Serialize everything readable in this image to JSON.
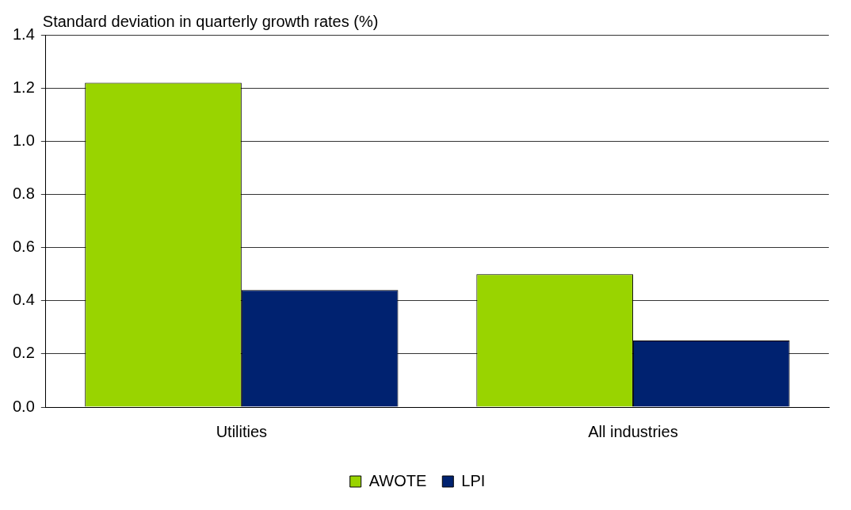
{
  "chart_data": {
    "type": "bar",
    "ylabel": "Standard deviation in quarterly growth rates (%)",
    "categories": [
      "Utilities",
      "All industries"
    ],
    "series": [
      {
        "name": "AWOTE",
        "color": "#99d400",
        "values": [
          1.22,
          0.5
        ]
      },
      {
        "name": "LPI",
        "color": "#002270",
        "values": [
          0.44,
          0.25
        ]
      }
    ],
    "ylim": [
      0,
      1.4
    ],
    "yticks": [
      {
        "value": 0,
        "label": "0.0"
      },
      {
        "value": 0.2,
        "label": "0.2"
      },
      {
        "value": 0.4,
        "label": "0.4"
      },
      {
        "value": 0.6,
        "label": "0.6"
      },
      {
        "value": 0.8,
        "label": "0.8"
      },
      {
        "value": 1,
        "label": "1.0"
      },
      {
        "value": 1.2,
        "label": "1.2"
      },
      {
        "value": 1.4,
        "label": "1.4"
      }
    ],
    "grid": "y",
    "legend": "bottom"
  }
}
